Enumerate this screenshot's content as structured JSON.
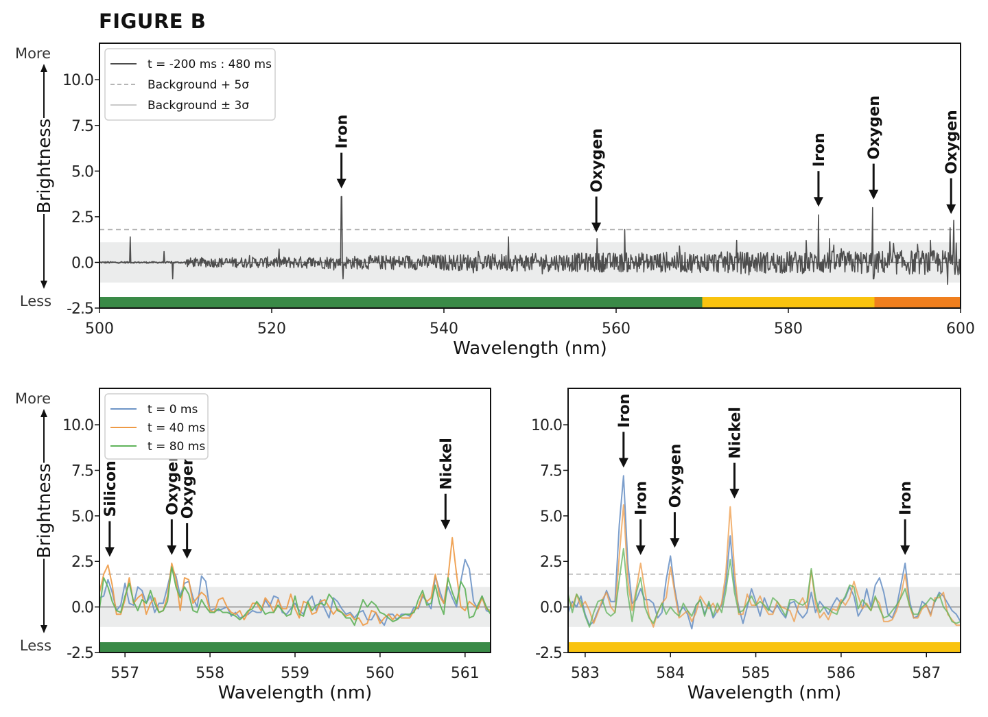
{
  "figure_title": "FIGURE B",
  "colors": {
    "line_main": "#4d4d4d",
    "threshold": "#b5b5b5",
    "band": "#ebecec",
    "zero": "#8a8a8a",
    "strip_green": "#3a8a47",
    "strip_yellow": "#f9c30f",
    "strip_orange": "#f07f1e",
    "t0": "#6d94c6",
    "t40": "#ee9a45",
    "t80": "#5fb35a"
  },
  "y_axis": {
    "label": "Brightness",
    "more": "More",
    "less": "Less"
  },
  "chart_data": [
    {
      "id": "top",
      "type": "line",
      "xlabel": "Wavelength (nm)",
      "ylabel": "Brightness",
      "xlim": [
        500,
        600
      ],
      "ylim": [
        -2.5,
        12.0
      ],
      "x_ticks": [
        "500",
        "520",
        "540",
        "560",
        "580",
        "600"
      ],
      "x_tick_values": [
        500,
        520,
        540,
        560,
        580,
        600
      ],
      "y_ticks": [
        "-2.5",
        "0.0",
        "2.5",
        "5.0",
        "7.5",
        "10.0"
      ],
      "y_tick_values": [
        -2.5,
        0,
        2.5,
        5,
        7.5,
        10
      ],
      "threshold": 1.8,
      "band": [
        -1.1,
        1.1
      ],
      "legend": [
        "t = -200 ms : 480 ms",
        "Background + 5σ",
        "Background ± 3σ"
      ],
      "series": [
        {
          "name": "t = -200 ms : 480 ms",
          "peaks": [
            [
              503.6,
              1.4
            ],
            [
              507.5,
              0.6
            ],
            [
              508.5,
              -0.9
            ],
            [
              528.1,
              3.6
            ],
            [
              528.3,
              -0.9
            ],
            [
              547.5,
              1.4
            ],
            [
              557.8,
              1.3
            ],
            [
              561.0,
              1.8
            ],
            [
              574.0,
              1.2
            ],
            [
              583.5,
              2.6
            ],
            [
              584.8,
              1.3
            ],
            [
              589.8,
              3.0
            ],
            [
              589.9,
              -0.9
            ],
            [
              596.5,
              1.2
            ],
            [
              598.8,
              1.9
            ],
            [
              599.2,
              2.3
            ],
            [
              598.5,
              -1.2
            ]
          ]
        }
      ],
      "color_strip": [
        {
          "from": 500,
          "to": 570,
          "color": "green"
        },
        {
          "from": 570,
          "to": 590,
          "color": "yellow"
        },
        {
          "from": 590,
          "to": 600,
          "color": "orange"
        }
      ],
      "annotations": [
        {
          "text": "Iron",
          "x": 528.1,
          "y": 3.6
        },
        {
          "text": "Oxygen",
          "x": 557.7,
          "y": 1.2
        },
        {
          "text": "Iron",
          "x": 583.5,
          "y": 2.6
        },
        {
          "text": "Oxygen",
          "x": 589.9,
          "y": 3.0
        },
        {
          "text": "Oxygen",
          "x": 598.9,
          "y": 2.2
        }
      ]
    },
    {
      "id": "bottom-left",
      "type": "line",
      "xlabel": "Wavelength (nm)",
      "ylabel": "Brightness",
      "xlim": [
        556.7,
        561.3
      ],
      "ylim": [
        -2.5,
        12.0
      ],
      "x_ticks": [
        "557",
        "558",
        "559",
        "560",
        "561"
      ],
      "x_tick_values": [
        557,
        558,
        559,
        560,
        561
      ],
      "y_ticks": [
        "-2.5",
        "0.0",
        "2.5",
        "5.0",
        "7.5",
        "10.0"
      ],
      "y_tick_values": [
        -2.5,
        0,
        2.5,
        5,
        7.5,
        10
      ],
      "threshold": 1.8,
      "band": [
        -1.1,
        1.1
      ],
      "legend": [
        "t = 0 ms",
        "t = 40 ms",
        "t = 80 ms"
      ],
      "x": [
        556.7,
        556.75,
        556.8,
        556.85,
        556.9,
        556.95,
        557.0,
        557.05,
        557.1,
        557.15,
        557.2,
        557.25,
        557.3,
        557.35,
        557.4,
        557.45,
        557.5,
        557.55,
        557.6,
        557.65,
        557.7,
        557.75,
        557.8,
        557.85,
        557.9,
        557.95,
        558.0,
        558.05,
        558.1,
        558.15,
        558.2,
        558.25,
        558.3,
        558.35,
        558.4,
        558.45,
        558.5,
        558.55,
        558.6,
        558.65,
        558.7,
        558.75,
        558.8,
        558.85,
        558.9,
        558.95,
        559.0,
        559.05,
        559.1,
        559.15,
        559.2,
        559.25,
        559.3,
        559.35,
        559.4,
        559.45,
        559.5,
        559.55,
        559.6,
        559.65,
        559.7,
        559.75,
        559.8,
        559.85,
        559.9,
        559.95,
        560.0,
        560.05,
        560.1,
        560.15,
        560.2,
        560.25,
        560.3,
        560.35,
        560.4,
        560.45,
        560.5,
        560.55,
        560.6,
        560.65,
        560.7,
        560.75,
        560.8,
        560.85,
        560.9,
        560.95,
        561.0,
        561.05,
        561.1,
        561.15,
        561.2,
        561.25,
        561.3
      ],
      "series": [
        {
          "name": "t = 0 ms",
          "values": [
            0.5,
            0.6,
            1.5,
            0.8,
            -0.2,
            0.1,
            1.3,
            0.2,
            0.1,
            1.1,
            0.9,
            0.2,
            0.6,
            -0.3,
            0.2,
            0.2,
            1.1,
            2.1,
            1.7,
            0.6,
            1.3,
            1.4,
            0.5,
            0.0,
            1.7,
            1.4,
            -0.2,
            -0.1,
            -0.2,
            -0.1,
            0.0,
            -0.5,
            -0.3,
            -0.6,
            -0.5,
            -0.4,
            -0.2,
            -0.3,
            -0.3,
            0.4,
            0.0,
            0.6,
            0.5,
            -0.3,
            -0.4,
            -0.1,
            0.2,
            -0.2,
            -0.4,
            0.3,
            0.6,
            -0.2,
            0.4,
            -0.1,
            -0.6,
            0.5,
            0.3,
            -0.1,
            -0.4,
            -0.3,
            -0.6,
            -0.3,
            -0.2,
            -0.7,
            -0.7,
            -0.3,
            -0.7,
            -1.0,
            -0.4,
            -0.4,
            -0.7,
            -0.4,
            -0.4,
            -0.5,
            0.0,
            -0.1,
            0.6,
            0.3,
            -0.1,
            1.7,
            0.9,
            0.2,
            1.1,
            0.5,
            0.0,
            1.4,
            2.6,
            2.1,
            0.3,
            -0.1,
            0.6,
            -0.2,
            -0.3
          ]
        },
        {
          "name": "t = 40 ms",
          "values": [
            0.8,
            1.8,
            2.3,
            1.2,
            -0.4,
            -0.4,
            0.4,
            1.6,
            0.2,
            0.5,
            0.7,
            -0.4,
            0.2,
            0.5,
            -0.3,
            -0.2,
            0.6,
            2.4,
            1.5,
            -0.2,
            1.6,
            1.5,
            0.2,
            0.5,
            0.8,
            0.6,
            -0.2,
            -0.3,
            0.4,
            0.5,
            0.0,
            -0.3,
            -0.4,
            -0.2,
            -0.7,
            -0.3,
            0.2,
            0.2,
            -0.2,
            0.5,
            0.2,
            -0.3,
            0.4,
            -0.1,
            -0.1,
            0.7,
            -0.1,
            -0.6,
            0.3,
            0.2,
            -0.4,
            -0.3,
            0.3,
            0.4,
            0.0,
            -0.4,
            -0.1,
            -0.3,
            -0.5,
            -0.4,
            -0.7,
            -0.6,
            -1.0,
            -0.9,
            -0.2,
            -0.3,
            -0.9,
            -0.6,
            -0.4,
            -0.7,
            -0.4,
            -0.6,
            -0.6,
            -0.6,
            -0.2,
            0.0,
            0.7,
            0.3,
            0.5,
            1.8,
            0.6,
            0.2,
            1.6,
            3.8,
            1.8,
            0.0,
            -0.2,
            0.3,
            0.1,
            -0.1,
            0.5,
            -0.1,
            -0.2
          ]
        },
        {
          "name": "t = 80 ms",
          "values": [
            -0.1,
            1.6,
            1.1,
            0.3,
            -0.2,
            -0.3,
            0.6,
            1.3,
            0.3,
            -0.2,
            0.4,
            0.2,
            0.9,
            0.2,
            -0.3,
            -0.2,
            0.3,
            2.2,
            1.1,
            0.5,
            1.1,
            0.7,
            -0.2,
            -0.3,
            0.4,
            0.0,
            -0.3,
            -0.3,
            -0.1,
            -0.3,
            -0.3,
            -0.4,
            -0.5,
            -0.7,
            -0.5,
            -0.2,
            -0.1,
            0.3,
            0.0,
            -0.4,
            -0.3,
            -0.3,
            0.1,
            -0.2,
            -0.5,
            -0.4,
            0.6,
            -0.4,
            -0.5,
            0.3,
            -0.2,
            0.1,
            0.2,
            0.1,
            0.7,
            0.4,
            -0.2,
            -0.3,
            -0.6,
            -0.6,
            -1.0,
            -0.3,
            0.4,
            0.0,
            0.3,
            0.1,
            -0.3,
            -0.4,
            -0.6,
            -0.8,
            -0.7,
            -0.5,
            -0.4,
            -0.4,
            -0.3,
            0.4,
            0.9,
            0.1,
            0.2,
            1.2,
            0.2,
            -0.4,
            1.6,
            0.8,
            0.2,
            1.4,
            1.0,
            -0.6,
            -0.5,
            0.1,
            0.6,
            0.0,
            -0.4
          ]
        }
      ],
      "color_strip": [
        {
          "from": 556.7,
          "to": 561.3,
          "color": "green"
        }
      ],
      "annotations": [
        {
          "text": "Silicon",
          "x": 556.82,
          "y": 2.3
        },
        {
          "text": "Oxygen",
          "x": 557.55,
          "y": 2.4
        },
        {
          "text": "Oxygen",
          "x": 557.73,
          "y": 2.2
        },
        {
          "text": "Nickel",
          "x": 560.77,
          "y": 3.8
        }
      ]
    },
    {
      "id": "bottom-right",
      "type": "line",
      "xlabel": "Wavelength (nm)",
      "ylabel": "",
      "xlim": [
        582.8,
        587.4
      ],
      "ylim": [
        -2.5,
        12.0
      ],
      "x_ticks": [
        "583",
        "584",
        "585",
        "586",
        "587"
      ],
      "x_tick_values": [
        583,
        584,
        585,
        586,
        587
      ],
      "y_ticks": [
        "-2.5",
        "0.0",
        "2.5",
        "5.0",
        "7.5",
        "10.0"
      ],
      "y_tick_values": [
        -2.5,
        0,
        2.5,
        5,
        7.5,
        10
      ],
      "threshold": 1.8,
      "band": [
        -1.1,
        1.1
      ],
      "x": [
        582.8,
        582.85,
        582.9,
        582.95,
        583.0,
        583.05,
        583.1,
        583.15,
        583.2,
        583.25,
        583.3,
        583.35,
        583.4,
        583.45,
        583.5,
        583.55,
        583.6,
        583.65,
        583.7,
        583.75,
        583.8,
        583.85,
        583.9,
        583.95,
        584.0,
        584.05,
        584.1,
        584.15,
        584.2,
        584.25,
        584.3,
        584.35,
        584.4,
        584.45,
        584.5,
        584.55,
        584.6,
        584.65,
        584.7,
        584.75,
        584.8,
        584.85,
        584.9,
        584.95,
        585.0,
        585.05,
        585.1,
        585.15,
        585.2,
        585.25,
        585.3,
        585.35,
        585.4,
        585.45,
        585.5,
        585.55,
        585.6,
        585.65,
        585.7,
        585.75,
        585.8,
        585.85,
        585.9,
        585.95,
        586.0,
        586.05,
        586.1,
        586.15,
        586.2,
        586.25,
        586.3,
        586.35,
        586.4,
        586.45,
        586.5,
        586.55,
        586.6,
        586.65,
        586.7,
        586.75,
        586.8,
        586.85,
        586.9,
        586.95,
        587.0,
        587.05,
        587.1,
        587.15,
        587.2,
        587.25,
        587.3,
        587.35,
        587.4
      ],
      "series": [
        {
          "name": "t = 0 ms",
          "values": [
            -0.3,
            0.3,
            0.0,
            0.6,
            -0.4,
            -1.0,
            -0.8,
            -0.2,
            0.2,
            0.9,
            0.3,
            0.3,
            4.5,
            7.2,
            2.4,
            0.2,
            0.4,
            1.0,
            0.4,
            0.4,
            0.2,
            -0.6,
            -0.3,
            1.5,
            2.8,
            1.0,
            -0.3,
            0.0,
            -0.4,
            -1.2,
            0.1,
            0.4,
            -0.4,
            0.2,
            -0.6,
            -0.2,
            0.1,
            1.3,
            3.9,
            1.2,
            0.0,
            -0.9,
            0.0,
            1.0,
            0.3,
            -0.5,
            0.5,
            -0.1,
            -0.3,
            0.1,
            -0.3,
            -0.6,
            0.2,
            0.3,
            -0.3,
            -0.6,
            -0.3,
            0.8,
            -0.3,
            0.3,
            0.0,
            -0.4,
            0.1,
            0.5,
            0.2,
            0.5,
            1.1,
            0.6,
            -0.5,
            -0.1,
            1.0,
            0.0,
            1.2,
            1.6,
            0.8,
            -0.4,
            -0.6,
            0.0,
            1.2,
            2.4,
            0.4,
            -0.6,
            -0.5,
            0.3,
            0.1,
            -0.4,
            0.3,
            0.8,
            0.6,
            0.2,
            -0.2,
            -0.4,
            -0.8
          ]
        },
        {
          "name": "t = 40 ms",
          "values": [
            0.5,
            0.0,
            0.7,
            0.0,
            0.3,
            -0.2,
            -0.9,
            -0.3,
            0.4,
            0.8,
            0.0,
            -0.3,
            2.8,
            5.6,
            1.5,
            -0.2,
            1.0,
            2.4,
            0.9,
            -0.5,
            -1.1,
            -0.3,
            0.2,
            0.5,
            2.2,
            0.8,
            -0.6,
            -0.4,
            -0.2,
            -0.8,
            -0.3,
            0.6,
            0.2,
            -0.1,
            0.2,
            -0.3,
            0.2,
            1.9,
            5.5,
            2.0,
            -0.4,
            -0.4,
            0.7,
            0.1,
            0.1,
            0.6,
            0.0,
            -0.4,
            -0.4,
            0.3,
            0.0,
            -0.1,
            -0.2,
            -0.8,
            0.1,
            0.5,
            -0.1,
            2.0,
            0.2,
            -0.6,
            -0.3,
            -0.7,
            -0.1,
            -0.2,
            0.4,
            0.1,
            0.5,
            1.4,
            0.6,
            -0.1,
            0.2,
            -0.2,
            0.5,
            0.2,
            -0.8,
            -0.8,
            -0.7,
            -0.2,
            0.6,
            1.8,
            0.1,
            -0.6,
            -0.6,
            -0.1,
            0.1,
            -0.5,
            0.5,
            0.5,
            0.8,
            -0.4,
            -0.7,
            -1.0,
            -1.0
          ]
        },
        {
          "name": "t = 80 ms",
          "values": [
            0.7,
            -0.3,
            0.7,
            0.3,
            -0.5,
            -1.1,
            -0.3,
            0.3,
            0.4,
            -0.3,
            -0.5,
            -0.3,
            1.5,
            3.2,
            0.7,
            -0.8,
            0.8,
            1.6,
            0.0,
            -0.6,
            -0.9,
            -0.3,
            0.2,
            -0.4,
            0.0,
            -0.3,
            -0.5,
            0.2,
            -0.2,
            -0.5,
            0.1,
            0.4,
            -0.5,
            0.3,
            -0.5,
            0.2,
            -0.3,
            0.9,
            2.6,
            0.8,
            -0.3,
            -0.2,
            0.2,
            0.6,
            0.1,
            0.3,
            0.1,
            -0.2,
            0.5,
            0.3,
            -0.1,
            -0.5,
            0.4,
            0.4,
            0.2,
            0.1,
            0.3,
            2.1,
            0.5,
            -0.3,
            0.0,
            -0.1,
            -0.3,
            -0.4,
            0.2,
            0.6,
            1.2,
            1.1,
            -0.1,
            0.4,
            0.1,
            -0.2,
            0.6,
            -0.1,
            -0.6,
            -0.5,
            -0.2,
            0.1,
            0.5,
            1.0,
            0.1,
            -0.4,
            -0.4,
            0.0,
            0.2,
            0.5,
            0.3,
            0.7,
            0.0,
            -0.3,
            -0.8,
            -0.9,
            -0.8
          ]
        }
      ],
      "color_strip": [
        {
          "from": 582.8,
          "to": 587.4,
          "color": "yellow"
        }
      ],
      "annotations": [
        {
          "text": "Iron",
          "x": 583.45,
          "y": 7.2
        },
        {
          "text": "Iron",
          "x": 583.65,
          "y": 2.4
        },
        {
          "text": "Oxygen",
          "x": 584.05,
          "y": 2.8
        },
        {
          "text": "Nickel",
          "x": 584.75,
          "y": 5.5
        },
        {
          "text": "Iron",
          "x": 586.75,
          "y": 2.4
        }
      ]
    }
  ]
}
